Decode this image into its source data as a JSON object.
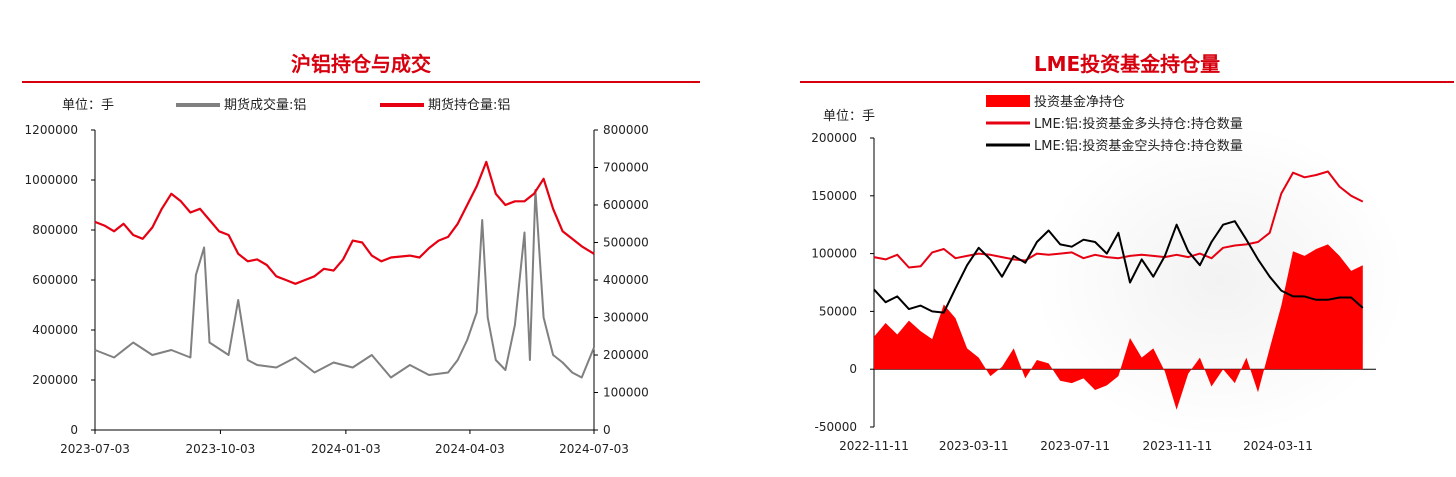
{
  "chart_data": [
    {
      "type": "line",
      "title": "沪铝持仓与成交",
      "unit_label": "单位：手",
      "x_tick_labels": [
        "2023-07-03",
        "2023-10-03",
        "2024-01-03",
        "2024-04-03",
        "2024-07-03"
      ],
      "y_left": {
        "ylim": [
          0,
          1200000
        ],
        "ticks": [
          "0",
          "200000",
          "400000",
          "600000",
          "800000",
          "1000000",
          "1200000"
        ]
      },
      "y_right": {
        "ylim": [
          0,
          800000
        ],
        "ticks": [
          "0",
          "100000",
          "200000",
          "300000",
          "400000",
          "500000",
          "600000",
          "700000",
          "800000"
        ]
      },
      "series": [
        {
          "name": "期货成交量:铝",
          "axis": "left",
          "color": "#808080",
          "x": [
            "2023-07-03",
            "2023-07-17",
            "2023-07-31",
            "2023-08-14",
            "2023-08-28",
            "2023-09-11",
            "2023-09-15",
            "2023-09-21",
            "2023-09-25",
            "2023-10-09",
            "2023-10-16",
            "2023-10-23",
            "2023-10-30",
            "2023-11-13",
            "2023-11-27",
            "2023-12-11",
            "2023-12-25",
            "2024-01-08",
            "2024-01-22",
            "2024-02-05",
            "2024-02-19",
            "2024-03-04",
            "2024-03-18",
            "2024-03-25",
            "2024-04-01",
            "2024-04-08",
            "2024-04-12",
            "2024-04-16",
            "2024-04-22",
            "2024-04-29",
            "2024-05-06",
            "2024-05-13",
            "2024-05-17",
            "2024-05-21",
            "2024-05-27",
            "2024-06-03",
            "2024-06-10",
            "2024-06-17",
            "2024-06-24",
            "2024-07-03"
          ],
          "values": [
            320000,
            290000,
            350000,
            300000,
            320000,
            290000,
            620000,
            730000,
            350000,
            300000,
            520000,
            280000,
            260000,
            250000,
            290000,
            230000,
            270000,
            250000,
            300000,
            210000,
            260000,
            220000,
            230000,
            280000,
            360000,
            470000,
            840000,
            450000,
            280000,
            240000,
            420000,
            790000,
            280000,
            960000,
            450000,
            300000,
            270000,
            230000,
            210000,
            330000
          ]
        },
        {
          "name": "期货持仓量:铝",
          "axis": "right",
          "color": "#e60012",
          "x": [
            "2023-07-03",
            "2023-07-10",
            "2023-07-17",
            "2023-07-24",
            "2023-07-31",
            "2023-08-07",
            "2023-08-14",
            "2023-08-21",
            "2023-08-28",
            "2023-09-04",
            "2023-09-11",
            "2023-09-18",
            "2023-09-25",
            "2023-10-02",
            "2023-10-09",
            "2023-10-16",
            "2023-10-23",
            "2023-10-30",
            "2023-11-06",
            "2023-11-13",
            "2023-11-20",
            "2023-11-27",
            "2023-12-04",
            "2023-12-11",
            "2023-12-18",
            "2023-12-25",
            "2024-01-01",
            "2024-01-08",
            "2024-01-15",
            "2024-01-22",
            "2024-01-29",
            "2024-02-05",
            "2024-02-19",
            "2024-02-26",
            "2024-03-04",
            "2024-03-11",
            "2024-03-18",
            "2024-03-25",
            "2024-04-01",
            "2024-04-08",
            "2024-04-15",
            "2024-04-22",
            "2024-04-29",
            "2024-05-06",
            "2024-05-13",
            "2024-05-20",
            "2024-05-27",
            "2024-06-03",
            "2024-06-10",
            "2024-06-17",
            "2024-06-24",
            "2024-07-03"
          ],
          "values": [
            555000,
            545000,
            530000,
            550000,
            520000,
            510000,
            540000,
            590000,
            630000,
            610000,
            580000,
            590000,
            560000,
            530000,
            520000,
            470000,
            450000,
            455000,
            440000,
            410000,
            400000,
            390000,
            400000,
            410000,
            430000,
            425000,
            455000,
            505000,
            500000,
            465000,
            450000,
            460000,
            465000,
            460000,
            485000,
            505000,
            515000,
            550000,
            600000,
            650000,
            715000,
            630000,
            600000,
            610000,
            610000,
            630000,
            670000,
            590000,
            530000,
            510000,
            490000,
            470000
          ]
        }
      ]
    },
    {
      "type": "area",
      "title": "LME投资基金持仓量",
      "unit_label": "单位：手",
      "x_tick_labels": [
        "2022-11-11",
        "2023-03-11",
        "2023-07-11",
        "2023-11-11",
        "2024-03-11"
      ],
      "ylim": [
        -50000,
        200000
      ],
      "y_ticks": [
        "200000",
        "150000",
        "100000",
        "50000",
        "0",
        "-50000"
      ],
      "series": [
        {
          "name": "投资基金净持仓",
          "kind": "area",
          "color": "#ff0000",
          "x": [
            "2022-11-11",
            "2022-11-25",
            "2022-12-09",
            "2022-12-23",
            "2023-01-06",
            "2023-01-20",
            "2023-02-03",
            "2023-02-17",
            "2023-03-03",
            "2023-03-17",
            "2023-03-31",
            "2023-04-14",
            "2023-04-28",
            "2023-05-12",
            "2023-05-26",
            "2023-06-09",
            "2023-06-23",
            "2023-07-07",
            "2023-07-21",
            "2023-08-04",
            "2023-08-18",
            "2023-09-01",
            "2023-09-15",
            "2023-09-29",
            "2023-10-13",
            "2023-10-27",
            "2023-11-10",
            "2023-11-24",
            "2023-12-08",
            "2023-12-22",
            "2024-01-05",
            "2024-01-19",
            "2024-02-02",
            "2024-02-16",
            "2024-03-01",
            "2024-03-15",
            "2024-03-29",
            "2024-04-12",
            "2024-04-26",
            "2024-05-10",
            "2024-05-24",
            "2024-06-07",
            "2024-06-21"
          ],
          "values": [
            28000,
            40000,
            30000,
            42000,
            33000,
            26000,
            56000,
            44000,
            18000,
            10000,
            -6000,
            2000,
            18000,
            -8000,
            8000,
            5000,
            -10000,
            -12000,
            -8000,
            -18000,
            -14000,
            -6000,
            27000,
            10000,
            18000,
            -2000,
            -35000,
            -4000,
            10000,
            -15000,
            0,
            -12000,
            10000,
            -20000,
            18000,
            55000,
            102000,
            98000,
            104000,
            108000,
            98000,
            85000,
            90000
          ]
        },
        {
          "name": "LME:铝:投资基金多头持仓:持仓数量",
          "kind": "line",
          "color": "#e60012",
          "x": [
            "2022-11-11",
            "2022-11-25",
            "2022-12-09",
            "2022-12-23",
            "2023-01-06",
            "2023-01-20",
            "2023-02-03",
            "2023-02-17",
            "2023-03-03",
            "2023-03-17",
            "2023-03-31",
            "2023-04-14",
            "2023-04-28",
            "2023-05-12",
            "2023-05-26",
            "2023-06-09",
            "2023-06-23",
            "2023-07-07",
            "2023-07-21",
            "2023-08-04",
            "2023-08-18",
            "2023-09-01",
            "2023-09-15",
            "2023-09-29",
            "2023-10-13",
            "2023-10-27",
            "2023-11-10",
            "2023-11-24",
            "2023-12-08",
            "2023-12-22",
            "2024-01-05",
            "2024-01-19",
            "2024-02-02",
            "2024-02-16",
            "2024-03-01",
            "2024-03-15",
            "2024-03-29",
            "2024-04-12",
            "2024-04-26",
            "2024-05-10",
            "2024-05-24",
            "2024-06-07",
            "2024-06-21"
          ],
          "values": [
            97000,
            95000,
            99000,
            88000,
            89000,
            101000,
            104000,
            96000,
            98000,
            100000,
            99000,
            97000,
            95000,
            94000,
            100000,
            99000,
            100000,
            101000,
            96000,
            99000,
            97000,
            96000,
            98000,
            99000,
            98000,
            97000,
            99000,
            97000,
            100000,
            96000,
            105000,
            107000,
            108000,
            110000,
            118000,
            152000,
            170000,
            166000,
            168000,
            171000,
            158000,
            150000,
            145000
          ]
        },
        {
          "name": "LME:铝:投资基金空头持仓:持仓数量",
          "kind": "line",
          "color": "#000000",
          "x": [
            "2022-11-11",
            "2022-11-25",
            "2022-12-09",
            "2022-12-23",
            "2023-01-06",
            "2023-01-20",
            "2023-02-03",
            "2023-02-17",
            "2023-03-03",
            "2023-03-17",
            "2023-03-31",
            "2023-04-14",
            "2023-04-28",
            "2023-05-12",
            "2023-05-26",
            "2023-06-09",
            "2023-06-23",
            "2023-07-07",
            "2023-07-21",
            "2023-08-04",
            "2023-08-18",
            "2023-09-01",
            "2023-09-15",
            "2023-09-29",
            "2023-10-13",
            "2023-10-27",
            "2023-11-10",
            "2023-11-24",
            "2023-12-08",
            "2023-12-22",
            "2024-01-05",
            "2024-01-19",
            "2024-02-02",
            "2024-02-16",
            "2024-03-01",
            "2024-03-15",
            "2024-03-29",
            "2024-04-12",
            "2024-04-26",
            "2024-05-10",
            "2024-05-24",
            "2024-06-07",
            "2024-06-21"
          ],
          "values": [
            69000,
            58000,
            63000,
            52000,
            55000,
            50000,
            49000,
            70000,
            90000,
            105000,
            95000,
            80000,
            98000,
            92000,
            110000,
            120000,
            108000,
            106000,
            112000,
            110000,
            100000,
            118000,
            75000,
            95000,
            80000,
            98000,
            125000,
            102000,
            90000,
            110000,
            125000,
            128000,
            112000,
            95000,
            80000,
            68000,
            63000,
            63000,
            60000,
            60000,
            62000,
            62000,
            53000
          ]
        }
      ]
    }
  ]
}
